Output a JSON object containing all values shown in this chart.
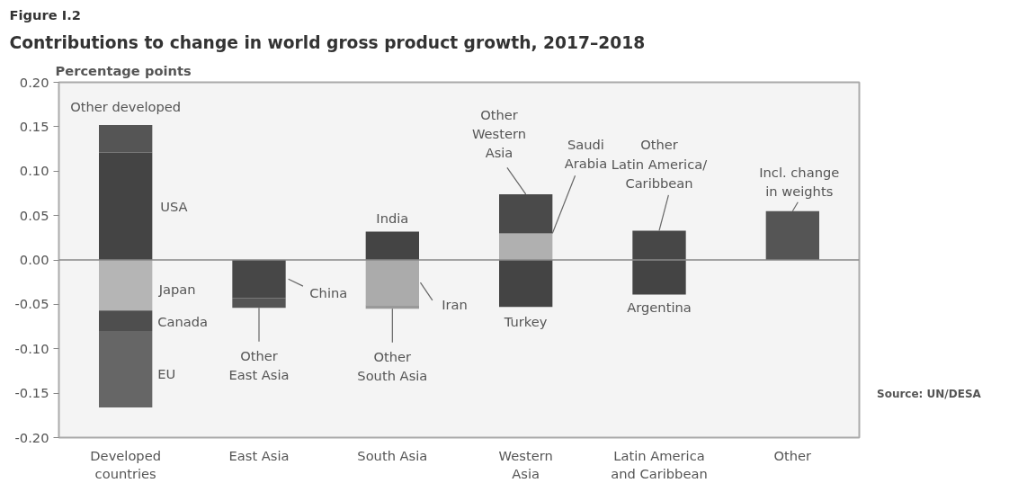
{
  "chart_data": {
    "type": "bar",
    "stacked": true,
    "title": "Figure I.2",
    "subtitle": "Contributions to change in world gross product growth, 2017–2018",
    "ylabel": "Percentage points",
    "categories": [
      "Developed\ncountries",
      "East Asia",
      "South Asia",
      "Western\nAsia",
      "Latin America\nand Caribbean",
      "Other"
    ],
    "series": [
      {
        "name": "USA",
        "color": "#444444",
        "values": [
          0.121,
          null,
          null,
          null,
          null,
          null
        ]
      },
      {
        "name": "Other developed",
        "color": "#555555",
        "values": [
          0.031,
          null,
          null,
          null,
          null,
          null
        ]
      },
      {
        "name": "Japan",
        "color": "#b5b5b5",
        "values": [
          -0.057,
          null,
          null,
          null,
          null,
          null
        ]
      },
      {
        "name": "Canada",
        "color": "#4e4e4e",
        "values": [
          -0.023,
          null,
          null,
          null,
          null,
          null
        ]
      },
      {
        "name": "EU",
        "color": "#666666",
        "values": [
          -0.086,
          null,
          null,
          null,
          null,
          null
        ]
      },
      {
        "name": "China",
        "color": "#474747",
        "values": [
          null,
          -0.043,
          null,
          null,
          null,
          null
        ]
      },
      {
        "name": "Other\nEast Asia",
        "color": "#555555",
        "values": [
          null,
          -0.011,
          null,
          null,
          null,
          null
        ]
      },
      {
        "name": "India",
        "color": "#444444",
        "values": [
          null,
          null,
          0.032,
          null,
          null,
          null
        ]
      },
      {
        "name": "Iran",
        "color": "#ababab",
        "values": [
          null,
          null,
          -0.051,
          null,
          null,
          null
        ]
      },
      {
        "name": "Other\nSouth Asia",
        "color": "#999999",
        "values": [
          null,
          null,
          -0.004,
          null,
          null,
          null
        ]
      },
      {
        "name": "Saudi\nArabia",
        "color": "#b0b0b0",
        "values": [
          null,
          null,
          null,
          0.03,
          null,
          null
        ]
      },
      {
        "name": "Other\nWestern\nAsia",
        "color": "#4a4a4a",
        "values": [
          null,
          null,
          null,
          0.044,
          null,
          null
        ]
      },
      {
        "name": "Turkey",
        "color": "#444444",
        "values": [
          null,
          null,
          null,
          -0.053,
          null,
          null
        ]
      },
      {
        "name": "Other\nLatin America/\nCaribbean",
        "color": "#474747",
        "values": [
          null,
          null,
          null,
          null,
          0.033,
          null
        ]
      },
      {
        "name": "Argentina",
        "color": "#444444",
        "values": [
          null,
          null,
          null,
          null,
          -0.039,
          null
        ]
      },
      {
        "name": "Incl. change\nin weights",
        "color": "#555555",
        "values": [
          null,
          null,
          null,
          null,
          null,
          0.055
        ]
      }
    ],
    "ylim": [
      -0.2,
      0.2
    ],
    "yticks": [
      {
        "value": -0.2,
        "label": "-0.20"
      },
      {
        "value": -0.15,
        "label": "-0.15"
      },
      {
        "value": -0.1,
        "label": "-0.10"
      },
      {
        "value": -0.05,
        "label": "-0.05"
      },
      {
        "value": 0,
        "label": "0.00"
      },
      {
        "value": 0.05,
        "label": "0.05"
      },
      {
        "value": 0.1,
        "label": "0.10"
      },
      {
        "value": 0.15,
        "label": "0.15"
      },
      {
        "value": 0.2,
        "label": "0.20"
      }
    ],
    "ref_lines": [
      {
        "axis": "y",
        "value": 0,
        "color": "#888888"
      }
    ],
    "annotations": [
      "Source: UN/DESA"
    ],
    "grid": false
  }
}
